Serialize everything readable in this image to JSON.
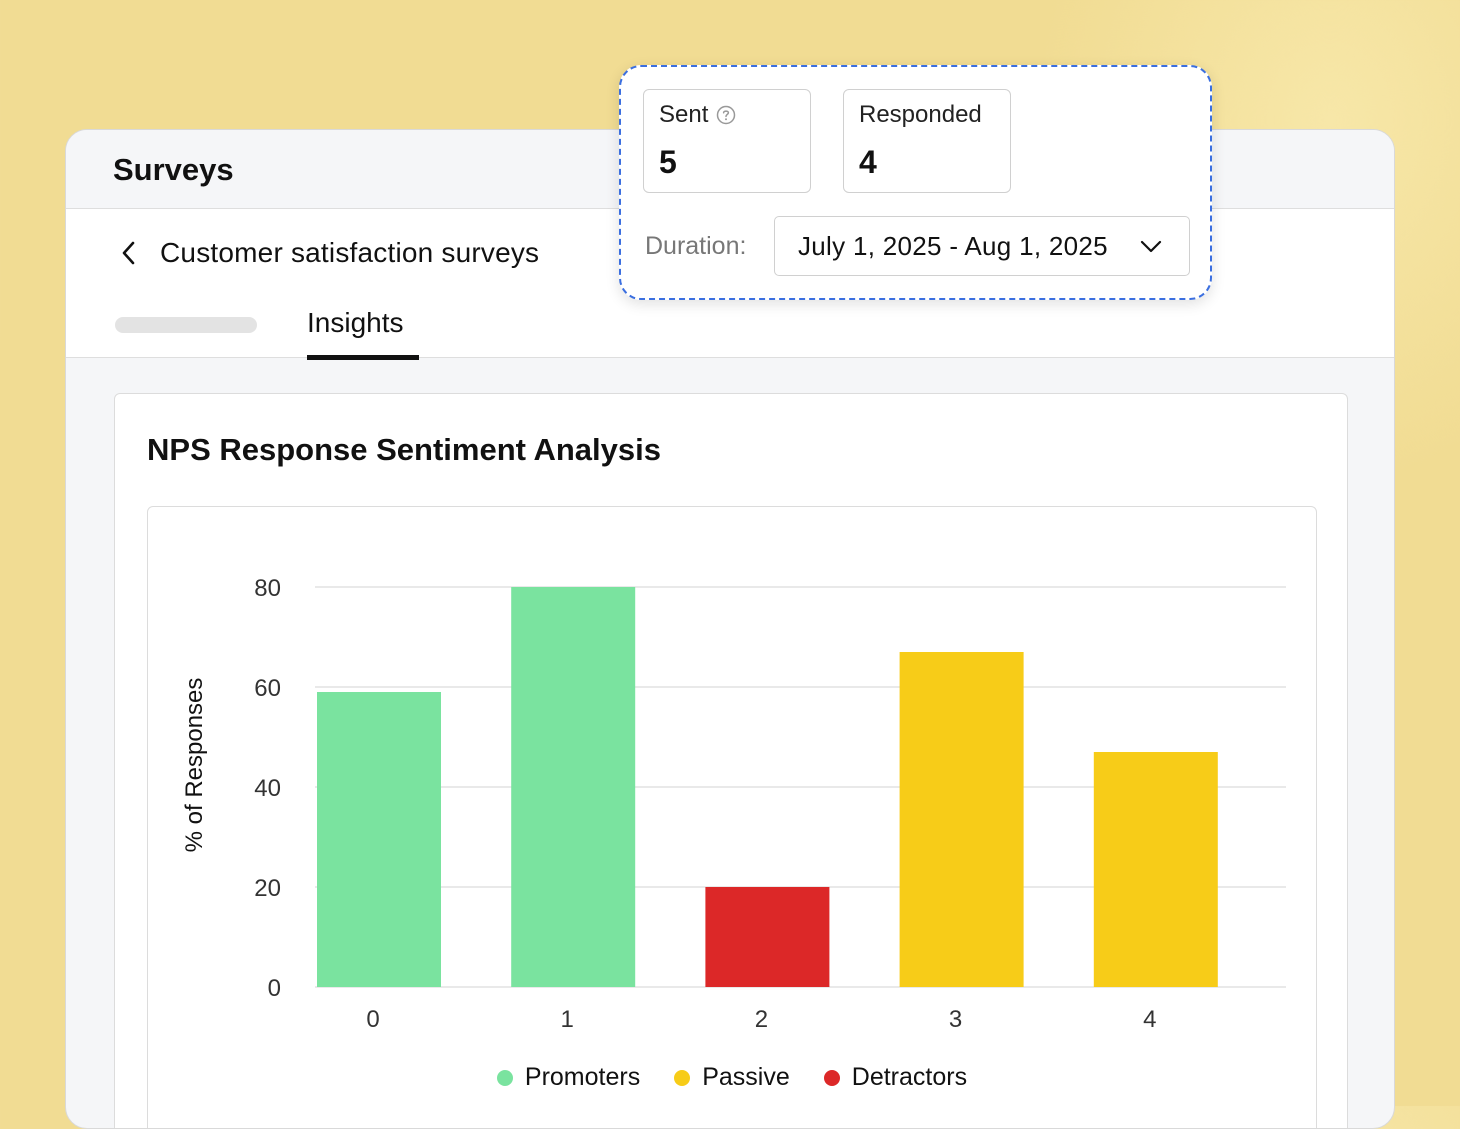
{
  "app": {
    "title": "Surveys"
  },
  "subheader": {
    "back_label": "Customer satisfaction surveys"
  },
  "tabs": [
    {
      "label": "Insights",
      "active": true
    }
  ],
  "summary": {
    "sent_label": "Sent",
    "sent_value": "5",
    "responded_label": "Responded",
    "responded_value": "4",
    "duration_label": "Duration:",
    "duration_value": "July 1, 2025 - Aug 1, 2025"
  },
  "card": {
    "title": "NPS Response Sentiment Analysis"
  },
  "colors": {
    "promoters": "#7ae39f",
    "passive": "#f7cc18",
    "detractors": "#dc2828",
    "gridline": "#e2e2e2",
    "accent_dashed": "#3b6fe0"
  },
  "chart_data": {
    "type": "bar",
    "title": "NPS Response Sentiment Analysis",
    "xlabel": "",
    "ylabel": "% of Responses",
    "categories": [
      "0",
      "1",
      "2",
      "3",
      "4"
    ],
    "values": [
      59,
      80,
      20,
      67,
      47
    ],
    "bar_groups": [
      "Promoters",
      "Promoters",
      "Detractors",
      "Passive",
      "Passive"
    ],
    "ylim": [
      0,
      80
    ],
    "yticks": [
      0,
      20,
      40,
      60,
      80
    ],
    "grid": true,
    "legend": [
      "Promoters",
      "Passive",
      "Detractors"
    ],
    "legend_position": "bottom-center"
  }
}
